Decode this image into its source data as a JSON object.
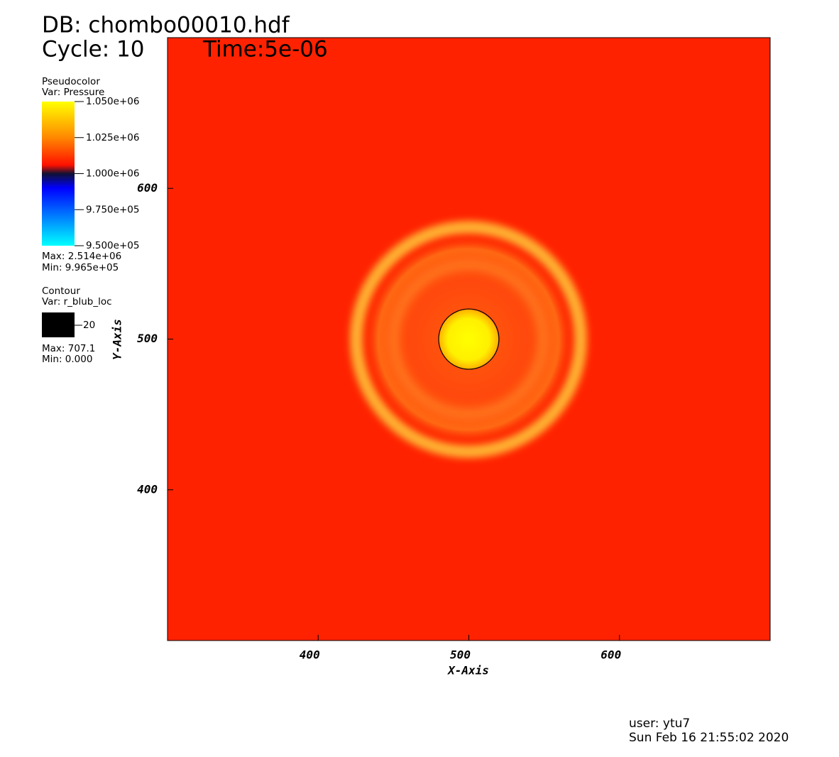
{
  "chart_data": {
    "type": "pseudocolor",
    "db": "DB: chombo00010.hdf",
    "cycle": "Cycle: 10",
    "time": "Time:5e-06",
    "xlabel": "X-Axis",
    "ylabel": "Y-Axis",
    "xlim": [
      300,
      700
    ],
    "ylim": [
      300,
      700
    ],
    "xticks": [
      400,
      500,
      600
    ],
    "yticks": [
      400,
      500,
      600
    ],
    "pseudocolor": {
      "title": "Pseudocolor",
      "var": "Var: Pressure",
      "range": [
        950000,
        1050000
      ],
      "ticks": [
        {
          "value": 1050000,
          "label": "1.050e+06"
        },
        {
          "value": 1025000,
          "label": "1.025e+06"
        },
        {
          "value": 1000000,
          "label": "1.000e+06"
        },
        {
          "value": 975000,
          "label": "9.750e+05"
        },
        {
          "value": 950000,
          "label": "9.500e+05"
        }
      ],
      "max": "Max: 2.514e+06",
      "min": "Min: 9.965e+05"
    },
    "contour": {
      "title": "Contour",
      "var": "Var: r_blub_loc",
      "level": 20,
      "max": "Max: 707.1",
      "min": "Min: 0.000"
    },
    "user": "user: ytu7",
    "date": "Sun Feb 16 21:55:02 2020"
  }
}
